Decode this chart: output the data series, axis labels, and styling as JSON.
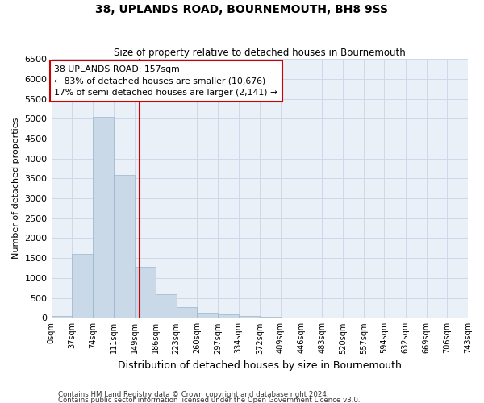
{
  "title": "38, UPLANDS ROAD, BOURNEMOUTH, BH8 9SS",
  "subtitle": "Size of property relative to detached houses in Bournemouth",
  "xlabel": "Distribution of detached houses by size in Bournemouth",
  "ylabel": "Number of detached properties",
  "bar_edges": [
    0,
    37,
    74,
    111,
    149,
    186,
    223,
    260,
    297,
    334,
    372,
    409,
    446,
    483,
    520,
    557,
    594,
    632,
    669,
    706,
    743
  ],
  "bar_heights": [
    50,
    1600,
    5050,
    3580,
    1280,
    600,
    270,
    130,
    90,
    55,
    25,
    10,
    5,
    3,
    2,
    1,
    1,
    0,
    0,
    0
  ],
  "bar_color": "#c9d9e8",
  "bar_edge_color": "#9ab5cc",
  "grid_color": "#cdd8e8",
  "background_color": "#eaf0f8",
  "vline_x": 157,
  "vline_color": "#cc0000",
  "annotation_text": "38 UPLANDS ROAD: 157sqm\n← 83% of detached houses are smaller (10,676)\n17% of semi-detached houses are larger (2,141) →",
  "annotation_box_color": "white",
  "annotation_box_edge": "#cc0000",
  "ylim": [
    0,
    6500
  ],
  "yticks": [
    0,
    500,
    1000,
    1500,
    2000,
    2500,
    3000,
    3500,
    4000,
    4500,
    5000,
    5500,
    6000,
    6500
  ],
  "footnote1": "Contains HM Land Registry data © Crown copyright and database right 2024.",
  "footnote2": "Contains public sector information licensed under the Open Government Licence v3.0."
}
